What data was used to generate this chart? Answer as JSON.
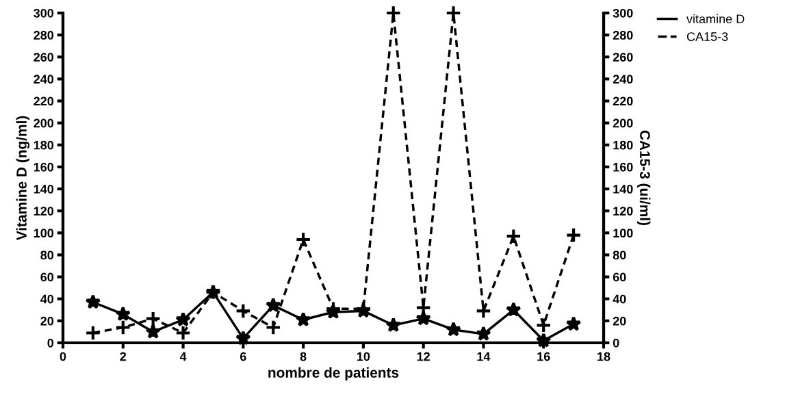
{
  "chart_data": {
    "type": "line",
    "xlabel": "nombre de patients",
    "ylabel": "Vitamine D (ng/ml)",
    "y2label": "CA15-3 (ui/ml)",
    "x": [
      1,
      2,
      3,
      4,
      5,
      6,
      7,
      8,
      9,
      10,
      11,
      12,
      13,
      14,
      15,
      16,
      17
    ],
    "series": [
      {
        "name": "vitamine D",
        "color": "#000000",
        "marker": "star",
        "line_style": "solid",
        "values": [
          37,
          26,
          10,
          21,
          46,
          4,
          34,
          21,
          28,
          29,
          16,
          22,
          12,
          8,
          30,
          2,
          17
        ]
      },
      {
        "name": "CA15-3",
        "color": "#000000",
        "marker": "cross",
        "line_style": "dashed",
        "axis": "y2",
        "values": [
          9,
          14,
          22,
          9,
          46,
          29,
          14,
          94,
          31,
          31,
          300,
          32,
          300,
          29,
          97,
          16,
          98
        ]
      }
    ],
    "xlim": [
      0,
      18
    ],
    "xticks": [
      0,
      2,
      4,
      6,
      8,
      10,
      12,
      14,
      16,
      18
    ],
    "ylim": [
      0,
      300
    ],
    "yticks": [
      0,
      20,
      40,
      60,
      80,
      100,
      120,
      140,
      160,
      180,
      200,
      220,
      240,
      260,
      280,
      300
    ],
    "y2lim": [
      0,
      300
    ],
    "y2ticks": [
      0,
      20,
      40,
      60,
      80,
      100,
      120,
      140,
      160,
      180,
      200,
      220,
      240,
      260,
      280,
      300
    ],
    "grid": false,
    "legend": "top right"
  }
}
